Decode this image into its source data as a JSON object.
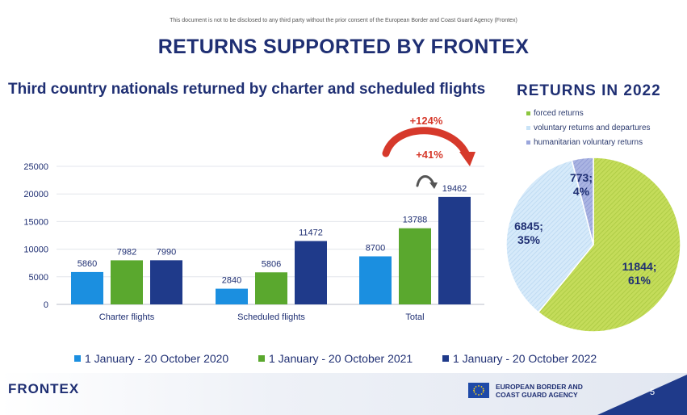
{
  "header": {
    "disclaimer": "This document is not to be disclosed to any third party without the prior consent of the European Border and Coast Guard Agency (Frontex)",
    "title": "RETURNS SUPPORTED BY FRONTEX"
  },
  "footer": {
    "brand": "FRONTEX",
    "agency_line1": "EUROPEAN BORDER AND",
    "agency_line2": "COAST GUARD AGENCY",
    "page": "5"
  },
  "colors": {
    "title": "#1f2f73",
    "series": [
      "#1b8fe0",
      "#5aa82e",
      "#1f3a8a"
    ],
    "arrow": "#d6392b",
    "pie": [
      "#c4dc5a",
      "#c9e3f7",
      "#9aa6dc"
    ]
  },
  "annotations": {
    "growth_total": "+124%",
    "growth_year": "+41%"
  },
  "chart_data": [
    {
      "type": "bar",
      "title": "Third country nationals returned by charter and scheduled flights",
      "categories": [
        "Charter flights",
        "Scheduled flights",
        "Total"
      ],
      "series": [
        {
          "name": "1 January - 20 October 2020",
          "values": [
            5860,
            2840,
            8700
          ]
        },
        {
          "name": "1 January - 20 October 2021",
          "values": [
            7982,
            5806,
            13788
          ]
        },
        {
          "name": "1 January - 20 October 2022",
          "values": [
            7990,
            11472,
            19462
          ]
        }
      ],
      "yticks": [
        0,
        5000,
        10000,
        15000,
        20000,
        25000
      ],
      "ylim": [
        0,
        25000
      ],
      "grid": true,
      "legend": "bottom"
    },
    {
      "type": "pie",
      "title": "RETURNS IN 2022",
      "slices": [
        {
          "name": "forced returns",
          "value": 11844,
          "label": "11844;",
          "pct": "61%"
        },
        {
          "name": "voluntary returns and departures",
          "value": 6845,
          "label": "6845;",
          "pct": "35%"
        },
        {
          "name": "humanitarian voluntary returns",
          "value": 773,
          "label": "773;",
          "pct": "4%"
        }
      ],
      "legend": "top"
    }
  ]
}
